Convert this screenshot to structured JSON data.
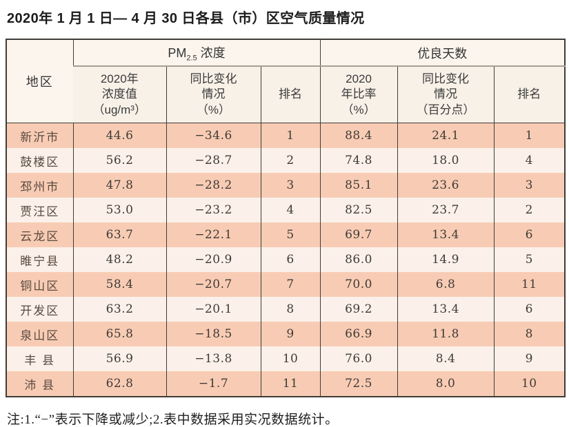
{
  "title": "2020年 1 月 1 日— 4 月 30 日各县（市）区空气质量情况",
  "note": "注:1.“−”表示下降或减少;2.表中数据采用实况数据统计。",
  "colors": {
    "row_odd": "#f8ccb4",
    "row_even": "#fbf1ea",
    "header_bg": "#f8f1e8",
    "group_header_bg": "#fbf5ed",
    "border": "#3f3b37",
    "group_divider": "#a79e95"
  },
  "table": {
    "corner_header": "地区",
    "groups": [
      {
        "prefix": "PM",
        "sub": "2.5",
        "suffix": " 浓度"
      },
      {
        "label": "优良天数"
      }
    ],
    "columns": [
      {
        "lines": [
          "2020年",
          "浓度值",
          "（ug/m³）"
        ]
      },
      {
        "lines": [
          "同比变化",
          "情况",
          "（%）"
        ]
      },
      {
        "lines": [
          "排名"
        ]
      },
      {
        "lines": [
          "2020",
          "年比率",
          "（%）"
        ]
      },
      {
        "lines": [
          "同比变化",
          "情况",
          "（百分点）"
        ]
      },
      {
        "lines": [
          "排名"
        ]
      }
    ],
    "rows": [
      {
        "region": "新沂市",
        "pm_value": "44.6",
        "pm_change": "−34.6",
        "pm_rank": "1",
        "good_rate": "88.4",
        "good_change": "24.1",
        "good_rank": "1"
      },
      {
        "region": "鼓楼区",
        "pm_value": "56.2",
        "pm_change": "−28.7",
        "pm_rank": "2",
        "good_rate": "74.8",
        "good_change": "18.0",
        "good_rank": "4"
      },
      {
        "region": "邳州市",
        "pm_value": "47.8",
        "pm_change": "−28.2",
        "pm_rank": "3",
        "good_rate": "85.1",
        "good_change": "23.6",
        "good_rank": "3"
      },
      {
        "region": "贾汪区",
        "pm_value": "53.0",
        "pm_change": "−23.2",
        "pm_rank": "4",
        "good_rate": "82.5",
        "good_change": "23.7",
        "good_rank": "2"
      },
      {
        "region": "云龙区",
        "pm_value": "63.7",
        "pm_change": "−22.1",
        "pm_rank": "5",
        "good_rate": "69.7",
        "good_change": "13.4",
        "good_rank": "6"
      },
      {
        "region": "睢宁县",
        "pm_value": "48.2",
        "pm_change": "−20.9",
        "pm_rank": "6",
        "good_rate": "86.0",
        "good_change": "14.9",
        "good_rank": "5"
      },
      {
        "region": "铜山区",
        "pm_value": "58.4",
        "pm_change": "−20.7",
        "pm_rank": "7",
        "good_rate": "70.0",
        "good_change": "6.8",
        "good_rank": "11"
      },
      {
        "region": "开发区",
        "pm_value": "63.2",
        "pm_change": "−20.1",
        "pm_rank": "8",
        "good_rate": "69.2",
        "good_change": "13.4",
        "good_rank": "6"
      },
      {
        "region": "泉山区",
        "pm_value": "65.8",
        "pm_change": "−18.5",
        "pm_rank": "9",
        "good_rate": "66.9",
        "good_change": "11.8",
        "good_rank": "8"
      },
      {
        "region": "丰 县",
        "pm_value": "56.9",
        "pm_change": "−13.8",
        "pm_rank": "10",
        "good_rate": "76.0",
        "good_change": "8.4",
        "good_rank": "9"
      },
      {
        "region": "沛 县",
        "pm_value": "62.8",
        "pm_change": "−1.7",
        "pm_rank": "11",
        "good_rate": "72.5",
        "good_change": "8.0",
        "good_rank": "10"
      }
    ]
  }
}
